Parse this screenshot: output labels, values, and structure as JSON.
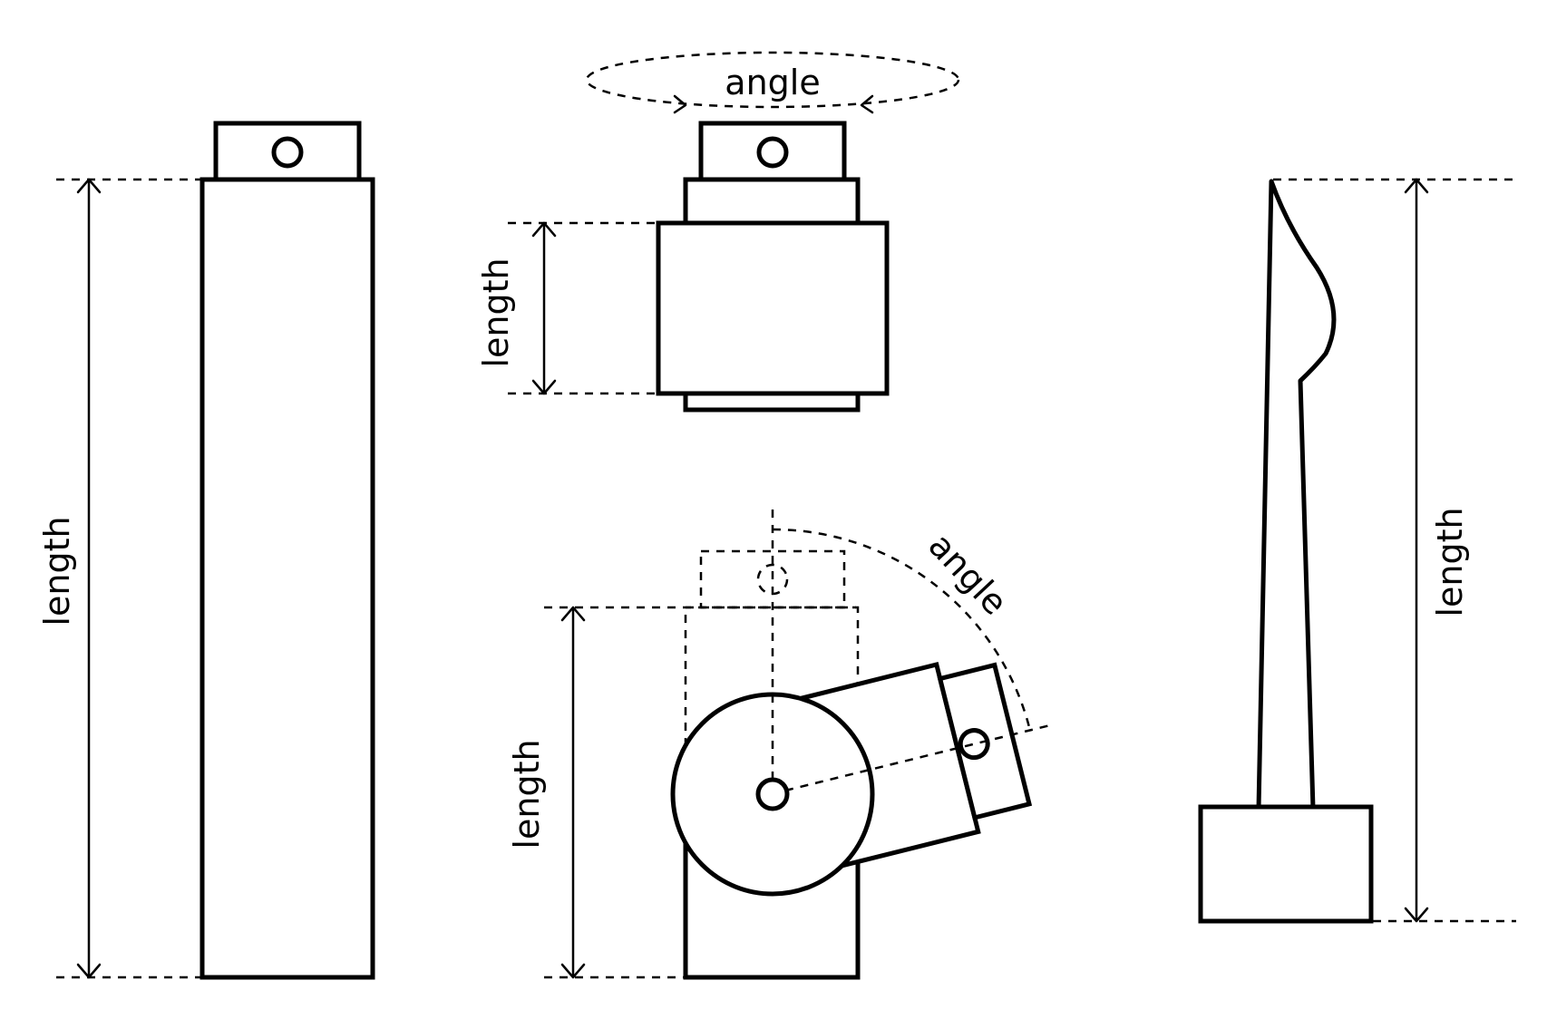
{
  "labels": {
    "left_length": "length",
    "top_angle": "angle",
    "top_length": "length",
    "bottom_angle": "angle",
    "bottom_length": "length",
    "right_length": "length"
  }
}
